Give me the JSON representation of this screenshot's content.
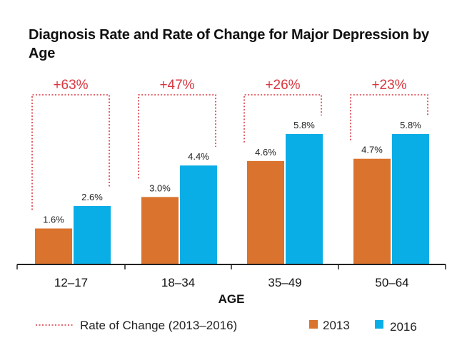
{
  "chart_data": {
    "type": "bar",
    "title": "Diagnosis Rate and Rate of Change for Major Depression by Age",
    "xlabel": "AGE",
    "ylabel": "",
    "ylim": [
      0,
      6.2
    ],
    "categories": [
      "12–17",
      "18–34",
      "35–49",
      "50–64"
    ],
    "series": [
      {
        "name": "2013",
        "values": [
          1.6,
          3.0,
          4.6,
          4.7
        ],
        "labels": [
          "1.6%",
          "3.0%",
          "4.6%",
          "4.7%"
        ],
        "color": "#d9732d"
      },
      {
        "name": "2016",
        "values": [
          2.6,
          4.4,
          5.8,
          5.8
        ],
        "labels": [
          "2.6%",
          "4.4%",
          "5.8%",
          "5.8%"
        ],
        "color": "#0aaee6"
      }
    ],
    "rate_of_change": {
      "name": "Rate of Change (2013–2016)",
      "labels": [
        "+63%",
        "+47%",
        "+26%",
        "+23%"
      ],
      "color": "#d9363e"
    },
    "legend": {
      "placement": "bottom",
      "rate_label": "Rate of Change (2013–2016)",
      "series_labels": [
        "2013",
        "2016"
      ]
    }
  }
}
